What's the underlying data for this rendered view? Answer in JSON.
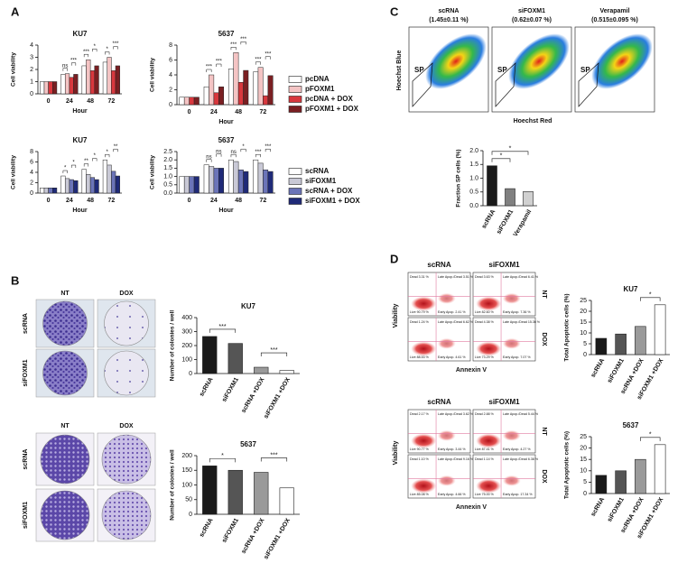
{
  "panel_labels": [
    "A",
    "B",
    "C",
    "D"
  ],
  "colony_sets": [
    {
      "columns": [
        "NT",
        "DOX"
      ],
      "rows": [
        "scRNA",
        "siFOXM1"
      ]
    },
    {
      "columns": [
        "NT",
        "DOX"
      ],
      "rows": [
        "scRNA",
        "siFOXM1"
      ]
    }
  ],
  "sp_flow": {
    "y_label": "Hoechst Blue",
    "x_label": "Hoechst Red",
    "plots": [
      {
        "title": "scRNA",
        "subtitle": "(1.45±0.11 %)",
        "gate": "SP"
      },
      {
        "title": "siFOXM1",
        "subtitle": "(0.62±0.07 %)",
        "gate": "SP"
      },
      {
        "title": "Verapamil",
        "subtitle": "(0.515±0.095 %)",
        "gate": "SP"
      }
    ]
  },
  "apoptosis_flow": [
    {
      "columns": [
        "scRNA",
        "siFOXM1"
      ],
      "rows": [
        "NT",
        "DOX"
      ],
      "y_label": "Viability",
      "x_label": "Annexin V",
      "quadrants": [
        [
          [
            "Dead 3.31 %",
            "Late Apop./Dead 3.51 %",
            "Live 90.79 %",
            "Early Apop. 2.41 %"
          ],
          [
            "Dead 3.63 %",
            "Late Apop./Dead 6.41 %",
            "Live 82.60 %",
            "Early Apop. 7.36 %"
          ]
        ],
        [
          [
            "Dead 1.24 %",
            "Late Apop./Dead 6.62 %",
            "Live 88.53 %",
            "Early Apop. 4.61 %"
          ],
          [
            "Dead 4.38 %",
            "Late Apop./Dead 15.36 %",
            "Live 73.29 %",
            "Early Apop. 7.07 %"
          ]
        ]
      ]
    },
    {
      "columns": [
        "scRNA",
        "siFOXM1"
      ],
      "rows": [
        "NT",
        "DOX"
      ],
      "y_label": "Viability",
      "x_label": "Annexin V",
      "quadrants": [
        [
          [
            "Dead 2.17 %",
            "Late Apop./Dead 3.62 %",
            "Live 90.77 %",
            "Early Apop. 3.44 %"
          ],
          [
            "Dead 2.88 %",
            "Late Apop./Dead 5.44 %",
            "Live 87.41 %",
            "Early Apop. 4.27 %"
          ]
        ],
        [
          [
            "Dead 1.10 %",
            "Late Apop./Dead 9.16 %",
            "Live 85.08 %",
            "Early Apop. 4.66 %"
          ],
          [
            "Dead 1.14 %",
            "Late Apop./Dead 6.38 %",
            "Live 75.00 %",
            "Early Apop. 17.34 %"
          ]
        ]
      ]
    }
  ],
  "chart_data": [
    {
      "type": "bar",
      "title": "KU7",
      "x_label": "Hour",
      "y_label": "Cell viability",
      "categories": [
        "0",
        "24",
        "48",
        "72"
      ],
      "ylim": [
        0,
        4
      ],
      "yticks": [
        0,
        1,
        2,
        3,
        4
      ],
      "series": [
        {
          "color": "#ffffff",
          "values": [
            1,
            1.6,
            2.3,
            2.6
          ]
        },
        {
          "color": "#f4c4c4",
          "values": [
            1,
            1.65,
            2.8,
            3.0
          ]
        },
        {
          "color": "#d8383e",
          "values": [
            1,
            1.35,
            1.9,
            1.9
          ]
        },
        {
          "color": "#7a1f22",
          "values": [
            1,
            1.6,
            2.3,
            2.3
          ]
        }
      ],
      "annotations": [
        [],
        [
          "ns",
          "***"
        ],
        [
          "***",
          "*"
        ],
        [
          "*",
          "***"
        ]
      ]
    },
    {
      "type": "bar",
      "title": "5637",
      "x_label": "Hour",
      "y_label": "Cell viability",
      "categories": [
        "0",
        "24",
        "48",
        "72"
      ],
      "ylim": [
        0,
        8
      ],
      "yticks": [
        0,
        2,
        4,
        6,
        8
      ],
      "legend": "right",
      "series": [
        {
          "name": "pcDNA",
          "color": "#ffffff",
          "values": [
            1,
            2.4,
            4.8,
            4.4
          ]
        },
        {
          "name": "pFOXM1",
          "color": "#f4c4c4",
          "values": [
            1,
            4.0,
            7.0,
            5.0
          ]
        },
        {
          "name": "pcDNA + DOX",
          "color": "#d8383e",
          "values": [
            1,
            1.6,
            3.0,
            1.2
          ]
        },
        {
          "name": "pFOXM1 + DOX",
          "color": "#7a1f22",
          "values": [
            1,
            2.4,
            4.6,
            3.9
          ]
        }
      ],
      "annotations": [
        [],
        [
          "***",
          "***"
        ],
        [
          "***",
          "***"
        ],
        [
          "***",
          "***"
        ]
      ]
    },
    {
      "type": "bar",
      "title": "KU7",
      "x_label": "Hour",
      "y_label": "Cell viability",
      "categories": [
        "0",
        "24",
        "48",
        "72"
      ],
      "ylim": [
        0,
        8
      ],
      "yticks": [
        0,
        2,
        4,
        6,
        8
      ],
      "series": [
        {
          "color": "#ffffff",
          "values": [
            1,
            3.3,
            4.6,
            6.4
          ]
        },
        {
          "color": "#c9c9d6",
          "values": [
            1,
            2.8,
            3.6,
            5.4
          ]
        },
        {
          "color": "#6b74b8",
          "values": [
            1,
            2.6,
            3.0,
            4.2
          ]
        },
        {
          "color": "#1f2a78",
          "values": [
            1,
            2.4,
            2.6,
            3.3
          ]
        }
      ],
      "annotations": [
        [],
        [
          "*",
          "*"
        ],
        [
          "**",
          "*"
        ],
        [
          "*",
          "**"
        ]
      ]
    },
    {
      "type": "bar",
      "title": "5637",
      "x_label": "Hour",
      "y_label": "Cell viability",
      "categories": [
        "0",
        "24",
        "48",
        "72"
      ],
      "ylim": [
        0,
        2.5
      ],
      "yticks": [
        {
          "value": 0,
          "label": "0.0"
        },
        0.5,
        {
          "value": 1,
          "label": "1.0"
        },
        1.5,
        {
          "value": 2,
          "label": "2.0"
        },
        2.5
      ],
      "legend": "right",
      "series": [
        {
          "name": "scRNA",
          "color": "#ffffff",
          "values": [
            1,
            1.7,
            2.0,
            2.0
          ]
        },
        {
          "name": "siFOXM1",
          "color": "#c9c9d6",
          "values": [
            1,
            1.6,
            1.9,
            1.8
          ]
        },
        {
          "name": "scRNA + DOX",
          "color": "#6b74b8",
          "values": [
            1,
            1.5,
            1.4,
            1.4
          ]
        },
        {
          "name": "siFOXM1 + DOX",
          "color": "#1f2a78",
          "values": [
            1,
            1.5,
            1.3,
            1.3
          ]
        }
      ],
      "annotations": [
        [],
        [
          "ns",
          "ns"
        ],
        [
          "ns",
          "*"
        ],
        [
          "***",
          "***"
        ]
      ]
    },
    {
      "type": "bar",
      "y_label": "Fraction SP cells (%)",
      "categories": [
        "scRNA",
        "siFOXM1",
        "Verapamil"
      ],
      "values": [
        1.45,
        0.62,
        0.515
      ],
      "colors": [
        "#1a1a1a",
        "#808080",
        "#d0d0d0"
      ],
      "ylim": [
        0,
        2
      ],
      "yticks": [
        {
          "value": 0,
          "label": "0.0"
        },
        0.5,
        {
          "value": 1,
          "label": "1.0"
        },
        1.5,
        {
          "value": 2,
          "label": "2.0"
        }
      ],
      "annotations": [
        {
          "text": "*",
          "bars": [
            0,
            1
          ]
        },
        {
          "text": "*",
          "bars": [
            0,
            2
          ]
        }
      ]
    },
    {
      "type": "bar",
      "title": "KU7",
      "y_label": "Number of colonies / well",
      "categories": [
        "scRNA",
        "siFOXM1",
        "scRNA +DOX",
        "siFOXM1 +DOX"
      ],
      "values": [
        265,
        215,
        45,
        22
      ],
      "colors": [
        "#1a1a1a",
        "#555555",
        "#9a9a9a",
        "#ffffff"
      ],
      "ylim": [
        0,
        400
      ],
      "yticks": [
        0,
        100,
        200,
        300,
        400
      ],
      "annotations": [
        {
          "text": "***",
          "bars": [
            0,
            1
          ]
        },
        {
          "text": "***",
          "bars": [
            2,
            3
          ]
        }
      ]
    },
    {
      "type": "bar",
      "title": "5637",
      "y_label": "Number of colonies / well",
      "categories": [
        "scRNA",
        "siFOXM1",
        "scRNA +DOX",
        "siFOXM1 +DOX"
      ],
      "values": [
        165,
        150,
        143,
        90
      ],
      "colors": [
        "#1a1a1a",
        "#555555",
        "#9a9a9a",
        "#ffffff"
      ],
      "ylim": [
        0,
        200
      ],
      "yticks": [
        0,
        50,
        100,
        150,
        200
      ],
      "annotations": [
        {
          "text": "*",
          "bars": [
            0,
            1
          ]
        },
        {
          "text": "***",
          "bars": [
            2,
            3
          ]
        }
      ]
    },
    {
      "type": "bar",
      "title": "KU7",
      "y_label": "Total Apoptotic cells (%)",
      "categories": [
        "scRNA",
        "siFOXM1",
        "scRNA +DOX",
        "siFOXM1 +DOX"
      ],
      "values": [
        7.5,
        9.5,
        13,
        23
      ],
      "colors": [
        "#1a1a1a",
        "#555555",
        "#9a9a9a",
        "#ffffff"
      ],
      "ylim": [
        0,
        25
      ],
      "yticks": [
        0,
        5,
        10,
        15,
        20,
        25
      ],
      "annotations": [
        {
          "text": "*",
          "bars": [
            2,
            3
          ]
        }
      ]
    },
    {
      "type": "bar",
      "title": "5637",
      "y_label": "Total Apoptotic cells (%)",
      "categories": [
        "scRNA",
        "siFOXM1",
        "scRNA +DOX",
        "siFOXM1 +DOX"
      ],
      "values": [
        8,
        10,
        15,
        21.5
      ],
      "colors": [
        "#1a1a1a",
        "#555555",
        "#9a9a9a",
        "#ffffff"
      ],
      "ylim": [
        0,
        25
      ],
      "yticks": [
        0,
        5,
        10,
        15,
        20,
        25
      ],
      "annotations": [
        {
          "text": "*",
          "bars": [
            2,
            3
          ]
        }
      ]
    }
  ]
}
